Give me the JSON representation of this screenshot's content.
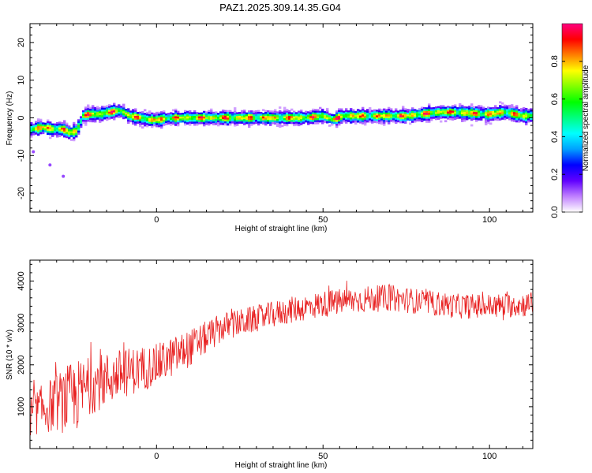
{
  "title": "PAZ1.2025.309.14.35.G04",
  "chart_data": [
    {
      "type": "heatmap",
      "name": "spectrogram",
      "xlabel": "Height of straight line (km)",
      "ylabel": "Frequency (Hz)",
      "xlim": [
        -38,
        113
      ],
      "ylim": [
        -25,
        25
      ],
      "xticks": [
        0,
        50,
        100
      ],
      "yticks": [
        20,
        10,
        0,
        -10,
        -20
      ],
      "ridge": {
        "x": [
          -37,
          -34,
          -31,
          -28,
          -26,
          -24,
          -22,
          -20,
          -17,
          -14,
          -11,
          -8,
          -5,
          -2,
          0,
          5,
          10,
          20,
          30,
          40,
          45,
          50,
          53,
          56,
          60,
          65,
          70,
          75,
          80,
          85,
          90,
          95,
          100,
          105,
          110,
          113
        ],
        "freq": [
          -3,
          -2.5,
          -3,
          -3,
          -4,
          -3.5,
          0.5,
          1,
          1,
          1.5,
          2,
          0.5,
          0,
          -0.5,
          -0.5,
          0,
          0,
          0,
          0,
          0,
          0,
          0.5,
          -0.5,
          0.5,
          0.5,
          0.5,
          0.5,
          0.5,
          1,
          1.5,
          1.5,
          1.2,
          1,
          1.5,
          0.5,
          0.5
        ]
      },
      "isolated_points": [
        [
          -37,
          -9
        ],
        [
          -32,
          -12.5
        ],
        [
          -28,
          -15.5
        ]
      ],
      "colorbar": {
        "label": "Normalized spectral amplitude",
        "range": [
          0,
          1
        ],
        "ticks": [
          "0.0",
          "0.2",
          "0.4",
          "0.6",
          "0.8"
        ],
        "colors": [
          "#ffffff",
          "#c080ff",
          "#6000ff",
          "#0000ff",
          "#00a0ff",
          "#00ffff",
          "#00ff80",
          "#00ff00",
          "#80ff00",
          "#ffff00",
          "#ff8000",
          "#ff0000",
          "#ff0080"
        ]
      }
    },
    {
      "type": "line",
      "name": "snr",
      "xlabel": "Height of straight line (km)",
      "ylabel": "SNR (10 * v/v)",
      "xlim": [
        -38,
        113
      ],
      "ylim": [
        0,
        4500
      ],
      "xticks": [
        0,
        50,
        100
      ],
      "yticks": [
        1000,
        2000,
        3000,
        4000
      ],
      "color": "#e82020",
      "trend": {
        "x": [
          -38,
          -30,
          -25,
          -20,
          -10,
          0,
          10,
          20,
          30,
          40,
          50,
          60,
          70,
          80,
          90,
          100,
          113
        ],
        "mean": [
          800,
          1100,
          1200,
          1500,
          1800,
          2000,
          2400,
          2900,
          3100,
          3300,
          3450,
          3550,
          3600,
          3500,
          3400,
          3400,
          3450
        ],
        "spread": [
          500,
          700,
          900,
          700,
          600,
          500,
          450,
          350,
          320,
          320,
          320,
          320,
          320,
          300,
          300,
          300,
          300
        ]
      }
    }
  ]
}
